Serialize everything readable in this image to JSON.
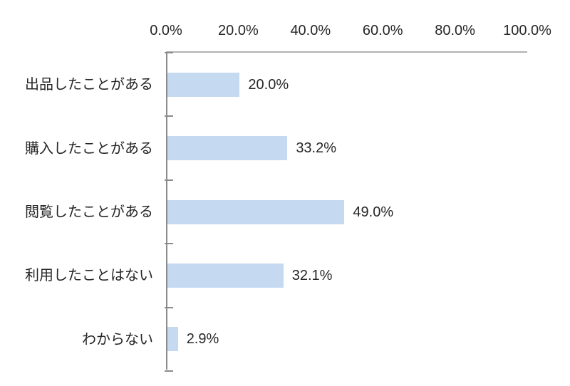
{
  "chart_data": {
    "type": "bar",
    "orientation": "horizontal",
    "title": "",
    "xlabel": "",
    "ylabel": "",
    "categories": [
      "出品したことがある",
      "購入したことがある",
      "閲覧したことがある",
      "利用したことはない",
      "わからない"
    ],
    "values": [
      20.0,
      33.2,
      49.0,
      32.1,
      2.9
    ],
    "value_labels": [
      "20.0%",
      "33.2%",
      "49.0%",
      "32.1%",
      "2.9%"
    ],
    "xlim": [
      0,
      100
    ],
    "x_tick_values": [
      0,
      20,
      40,
      60,
      80,
      100
    ],
    "x_tick_labels": [
      "0.0%",
      "20.0%",
      "40.0%",
      "60.0%",
      "80.0%",
      "100.0%"
    ],
    "axis_labels_position": "top",
    "grid": false,
    "legend": false,
    "colors": {
      "bar_fill": "#c5d9f1",
      "category_axis_line": "#8c8c8c",
      "value_axis_line": "#b2b2b2",
      "tick_mark": "#8c8c8c",
      "text": "#262626",
      "background": "#ffffff"
    }
  }
}
